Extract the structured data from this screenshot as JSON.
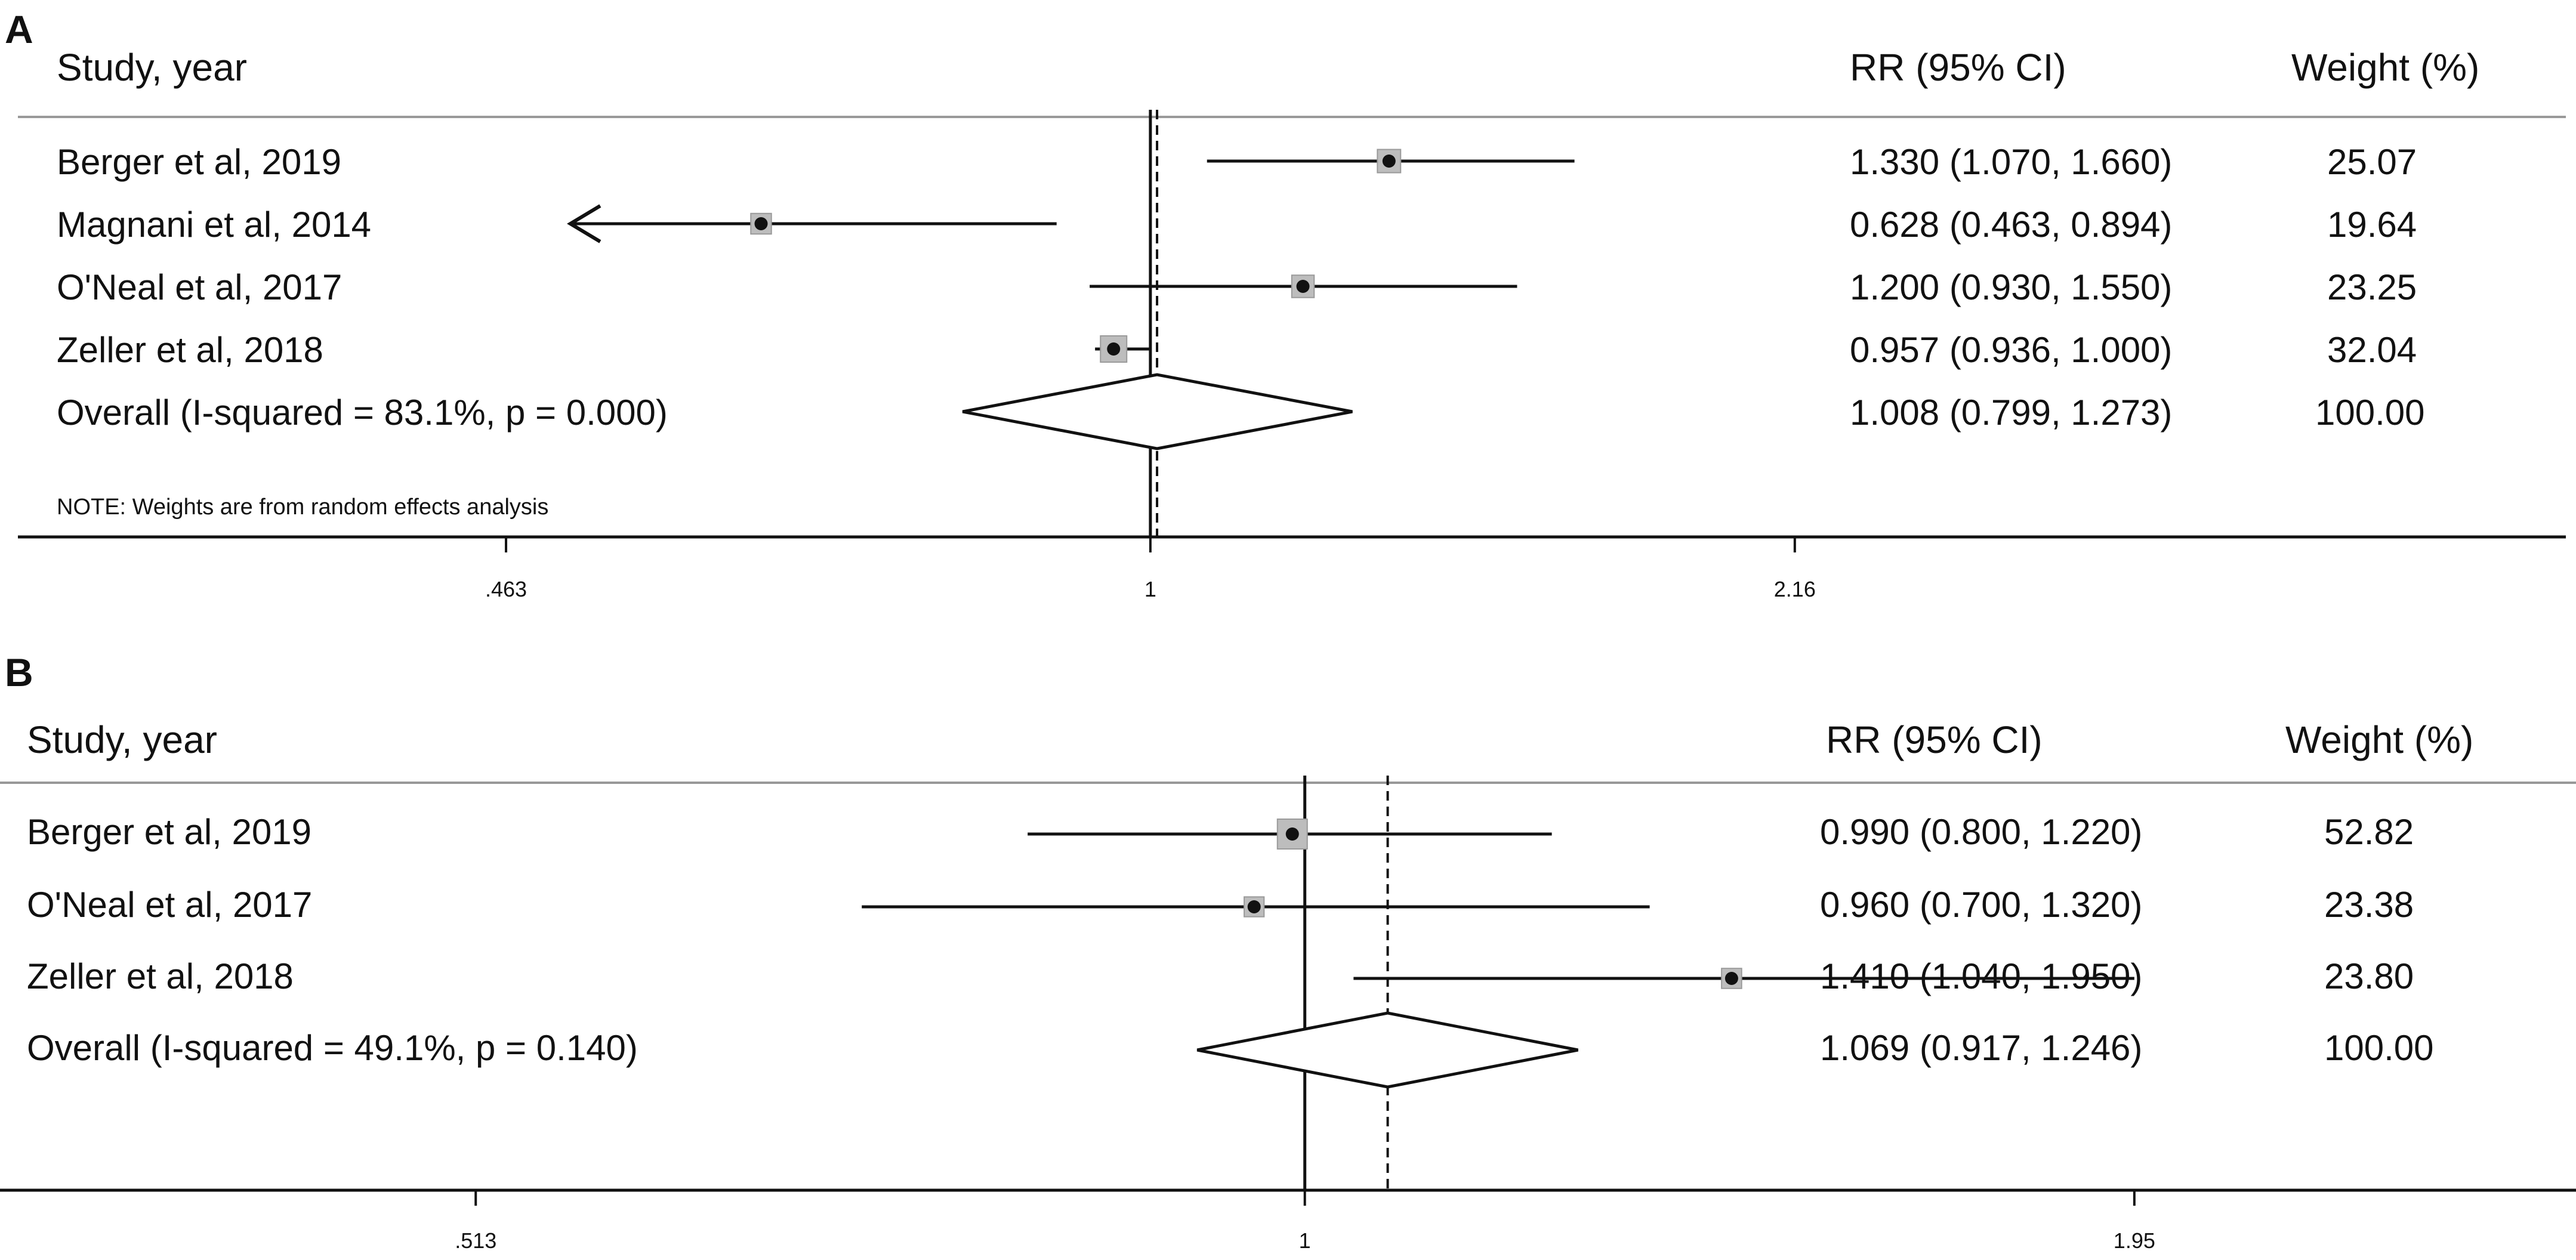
{
  "chart_data": [
    {
      "type": "forest",
      "panel_label": "A",
      "headers": {
        "study": "Study, year",
        "effect": "RR (95% CI)",
        "weight": "Weight (%)"
      },
      "scale": "log",
      "xlim": [
        0.32,
        3.8
      ],
      "null_value": 1,
      "overall_line": 1.008,
      "ticks": [
        {
          "value": 0.463,
          "label": ".463"
        },
        {
          "value": 1,
          "label": "1"
        },
        {
          "value": 2.16,
          "label": "2.16"
        }
      ],
      "studies": [
        {
          "label": "Berger et al, 2019",
          "rr": 1.33,
          "lo": 1.07,
          "hi": 1.66,
          "ci_text": "1.330 (1.070, 1.660)",
          "weight": 25.07,
          "weight_text": "25.07",
          "arrow_left": false
        },
        {
          "label": "Magnani et al, 2014",
          "rr": 0.628,
          "lo": 0.463,
          "hi": 0.894,
          "ci_text": "0.628 (0.463, 0.894)",
          "weight": 19.64,
          "weight_text": "19.64",
          "arrow_left": true
        },
        {
          "label": "O'Neal et al, 2017",
          "rr": 1.2,
          "lo": 0.93,
          "hi": 1.55,
          "ci_text": "1.200 (0.930, 1.550)",
          "weight": 23.25,
          "weight_text": "23.25",
          "arrow_left": false
        },
        {
          "label": "Zeller et al, 2018",
          "rr": 0.957,
          "lo": 0.936,
          "hi": 1.0,
          "ci_text": "0.957 (0.936, 1.000)",
          "weight": 32.04,
          "weight_text": "32.04",
          "arrow_left": false
        }
      ],
      "overall": {
        "label": "Overall  (I-squared = 83.1%, p = 0.000)",
        "rr": 1.008,
        "lo": 0.799,
        "hi": 1.273,
        "ci_text": "1.008 (0.799, 1.273)",
        "weight_text": "100.00"
      },
      "note": "NOTE: Weights are from random effects analysis"
    },
    {
      "type": "forest",
      "panel_label": "B",
      "headers": {
        "study": "Study, year",
        "effect": "RR (95% CI)",
        "weight": "Weight (%)"
      },
      "scale": "log",
      "xlim": [
        0.36,
        2.76
      ],
      "null_value": 1,
      "overall_line": 1.069,
      "ticks": [
        {
          "value": 0.513,
          "label": ".513"
        },
        {
          "value": 1,
          "label": "1"
        },
        {
          "value": 1.95,
          "label": "1.95"
        }
      ],
      "studies": [
        {
          "label": "Berger et al, 2019",
          "rr": 0.99,
          "lo": 0.8,
          "hi": 1.22,
          "ci_text": "0.990 (0.800, 1.220)",
          "weight": 52.82,
          "weight_text": "52.82",
          "arrow_left": false
        },
        {
          "label": "O'Neal et al, 2017",
          "rr": 0.96,
          "lo": 0.7,
          "hi": 1.32,
          "ci_text": "0.960 (0.700, 1.320)",
          "weight": 23.38,
          "weight_text": "23.38",
          "arrow_left": false
        },
        {
          "label": "Zeller et al, 2018",
          "rr": 1.41,
          "lo": 1.04,
          "hi": 1.95,
          "ci_text": "1.410 (1.040, 1.950)",
          "weight": 23.8,
          "weight_text": "23.80",
          "arrow_left": false
        }
      ],
      "overall": {
        "label": "Overall  (I-squared = 49.1%, p = 0.140)",
        "rr": 1.069,
        "lo": 0.917,
        "hi": 1.246,
        "ci_text": "1.069 (0.917, 1.246)",
        "weight_text": "100.00"
      },
      "note": ""
    }
  ]
}
